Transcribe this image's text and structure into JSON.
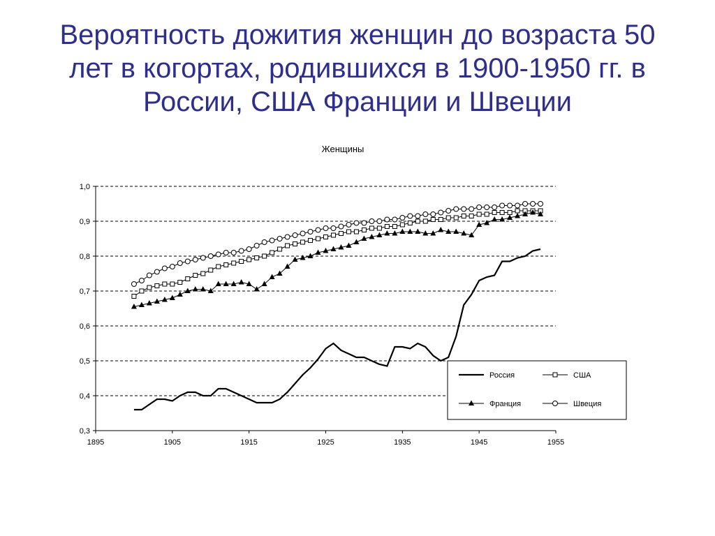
{
  "slide": {
    "title_lines": [
      "Вероятность дожития женщин до возраста 50",
      "лет в когортах, родившихся в 1900-1950 гг. в",
      "России, США Франции и Швеции"
    ]
  },
  "chart_data": {
    "type": "line",
    "title": "Женщины",
    "xlabel": "",
    "ylabel": "",
    "xlim": [
      1895,
      1955
    ],
    "ylim": [
      0.3,
      1.0
    ],
    "x_ticks": [
      "1895",
      "1905",
      "1915",
      "1925",
      "1935",
      "1945",
      "1955"
    ],
    "y_ticks": [
      "0,3",
      "0,4",
      "0,5",
      "0,6",
      "0,7",
      "0,8",
      "0,9",
      "1,0"
    ],
    "grid": "horizontal dashed",
    "legend_position": "bottom-right",
    "x": [
      1900,
      1901,
      1902,
      1903,
      1904,
      1905,
      1906,
      1907,
      1908,
      1909,
      1910,
      1911,
      1912,
      1913,
      1914,
      1915,
      1916,
      1917,
      1918,
      1919,
      1920,
      1921,
      1922,
      1923,
      1924,
      1925,
      1926,
      1927,
      1928,
      1929,
      1930,
      1931,
      1932,
      1933,
      1934,
      1935,
      1936,
      1937,
      1938,
      1939,
      1940,
      1941,
      1942,
      1943,
      1944,
      1945,
      1946,
      1947,
      1948,
      1949,
      1950,
      1951,
      1952,
      1953
    ],
    "series": [
      {
        "name": "Россия",
        "marker": "none",
        "values": [
          0.36,
          0.36,
          0.375,
          0.39,
          0.39,
          0.385,
          0.4,
          0.41,
          0.41,
          0.4,
          0.4,
          0.42,
          0.42,
          0.41,
          0.4,
          0.39,
          0.38,
          0.38,
          0.38,
          0.39,
          0.41,
          0.435,
          0.46,
          0.48,
          0.505,
          0.535,
          0.55,
          0.53,
          0.52,
          0.51,
          0.51,
          0.5,
          0.49,
          0.485,
          0.54,
          0.54,
          0.535,
          0.55,
          0.54,
          0.515,
          0.5,
          0.51,
          0.57,
          0.66,
          0.69,
          0.73,
          0.74,
          0.745,
          0.785,
          0.785,
          0.795,
          0.8,
          0.815,
          0.82
        ]
      },
      {
        "name": "США",
        "marker": "open-square",
        "values": [
          0.685,
          0.7,
          0.71,
          0.715,
          0.72,
          0.72,
          0.725,
          0.735,
          0.745,
          0.75,
          0.76,
          0.77,
          0.775,
          0.78,
          0.785,
          0.79,
          0.795,
          0.8,
          0.81,
          0.82,
          0.83,
          0.835,
          0.84,
          0.845,
          0.85,
          0.855,
          0.86,
          0.865,
          0.87,
          0.87,
          0.875,
          0.88,
          0.88,
          0.885,
          0.885,
          0.89,
          0.895,
          0.9,
          0.9,
          0.905,
          0.905,
          0.91,
          0.91,
          0.915,
          0.915,
          0.92,
          0.92,
          0.925,
          0.925,
          0.925,
          0.93,
          0.93,
          0.93,
          0.93
        ]
      },
      {
        "name": "Франция",
        "marker": "filled-triangle",
        "values": [
          0.655,
          0.66,
          0.665,
          0.67,
          0.675,
          0.68,
          0.69,
          0.7,
          0.705,
          0.705,
          0.7,
          0.72,
          0.72,
          0.72,
          0.725,
          0.72,
          0.705,
          0.72,
          0.74,
          0.75,
          0.77,
          0.79,
          0.795,
          0.8,
          0.81,
          0.815,
          0.82,
          0.825,
          0.83,
          0.84,
          0.85,
          0.855,
          0.86,
          0.865,
          0.865,
          0.87,
          0.87,
          0.87,
          0.865,
          0.865,
          0.875,
          0.87,
          0.87,
          0.865,
          0.86,
          0.89,
          0.895,
          0.905,
          0.905,
          0.91,
          0.915,
          0.92,
          0.925,
          0.92
        ]
      },
      {
        "name": "Швеция",
        "marker": "open-circle",
        "values": [
          0.72,
          0.73,
          0.745,
          0.755,
          0.765,
          0.77,
          0.78,
          0.785,
          0.79,
          0.795,
          0.8,
          0.805,
          0.81,
          0.81,
          0.815,
          0.82,
          0.83,
          0.84,
          0.845,
          0.85,
          0.855,
          0.86,
          0.865,
          0.87,
          0.875,
          0.88,
          0.88,
          0.885,
          0.89,
          0.895,
          0.895,
          0.9,
          0.9,
          0.905,
          0.905,
          0.91,
          0.915,
          0.915,
          0.92,
          0.92,
          0.925,
          0.93,
          0.935,
          0.935,
          0.935,
          0.94,
          0.94,
          0.94,
          0.945,
          0.945,
          0.945,
          0.95,
          0.95,
          0.95
        ]
      }
    ]
  }
}
